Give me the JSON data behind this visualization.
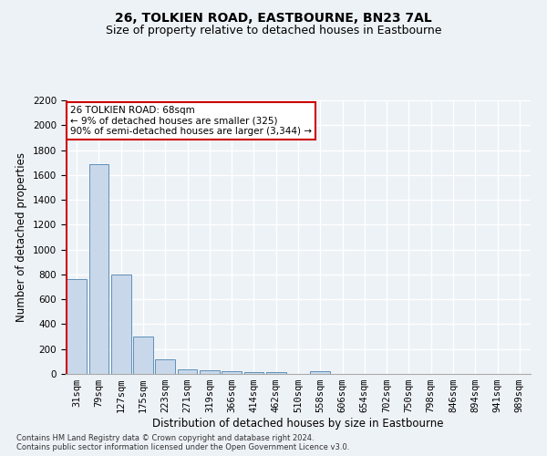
{
  "title": "26, TOLKIEN ROAD, EASTBOURNE, BN23 7AL",
  "subtitle": "Size of property relative to detached houses in Eastbourne",
  "xlabel": "Distribution of detached houses by size in Eastbourne",
  "ylabel": "Number of detached properties",
  "categories": [
    "31sqm",
    "79sqm",
    "127sqm",
    "175sqm",
    "223sqm",
    "271sqm",
    "319sqm",
    "366sqm",
    "414sqm",
    "462sqm",
    "510sqm",
    "558sqm",
    "606sqm",
    "654sqm",
    "702sqm",
    "750sqm",
    "798sqm",
    "846sqm",
    "894sqm",
    "941sqm",
    "989sqm"
  ],
  "values": [
    760,
    1690,
    800,
    300,
    115,
    40,
    28,
    22,
    18,
    15,
    0,
    22,
    0,
    0,
    0,
    0,
    0,
    0,
    0,
    0,
    0
  ],
  "bar_color": "#c8d8ea",
  "bar_edge_color": "#6090b8",
  "property_line_color": "#cc0000",
  "ylim": [
    0,
    2200
  ],
  "yticks": [
    0,
    200,
    400,
    600,
    800,
    1000,
    1200,
    1400,
    1600,
    1800,
    2000,
    2200
  ],
  "annotation_box_text": "26 TOLKIEN ROAD: 68sqm\n← 9% of detached houses are smaller (325)\n90% of semi-detached houses are larger (3,344) →",
  "annotation_box_color": "#cc0000",
  "footer_text": "Contains HM Land Registry data © Crown copyright and database right 2024.\nContains public sector information licensed under the Open Government Licence v3.0.",
  "bg_color": "#edf2f7",
  "grid_color": "#ffffff",
  "title_fontsize": 10,
  "subtitle_fontsize": 9,
  "tick_fontsize": 7.5,
  "ylabel_fontsize": 8.5,
  "xlabel_fontsize": 8.5,
  "annotation_fontsize": 7.5,
  "footer_fontsize": 6
}
